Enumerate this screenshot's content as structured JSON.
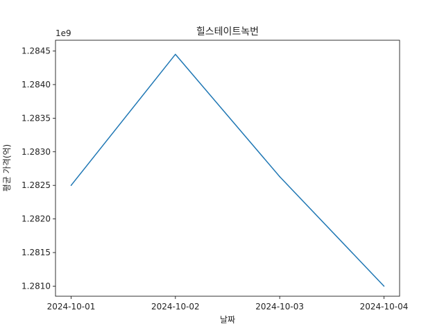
{
  "chart_data": {
    "type": "line",
    "title": "힐스테이트녹번",
    "xlabel": "날짜",
    "ylabel": "평균 가격(억)",
    "y_offset_text": "1e9",
    "x": [
      "2024-10-01",
      "2024-10-02",
      "2024-10-03",
      "2024-10-04"
    ],
    "series": [
      {
        "values": [
          1282500000,
          1284450000,
          1282630000,
          1281000000
        ],
        "color": "#1f77b4"
      }
    ],
    "ylim": [
      1280850000,
      1284660000
    ],
    "y_ticks": [
      1281000000,
      1281500000,
      1282000000,
      1282500000,
      1283000000,
      1283500000,
      1284000000,
      1284500000
    ],
    "y_tick_labels": [
      "1.2810",
      "1.2815",
      "1.2820",
      "1.2825",
      "1.2830",
      "1.2835",
      "1.2840",
      "1.2845"
    ],
    "grid": false
  }
}
